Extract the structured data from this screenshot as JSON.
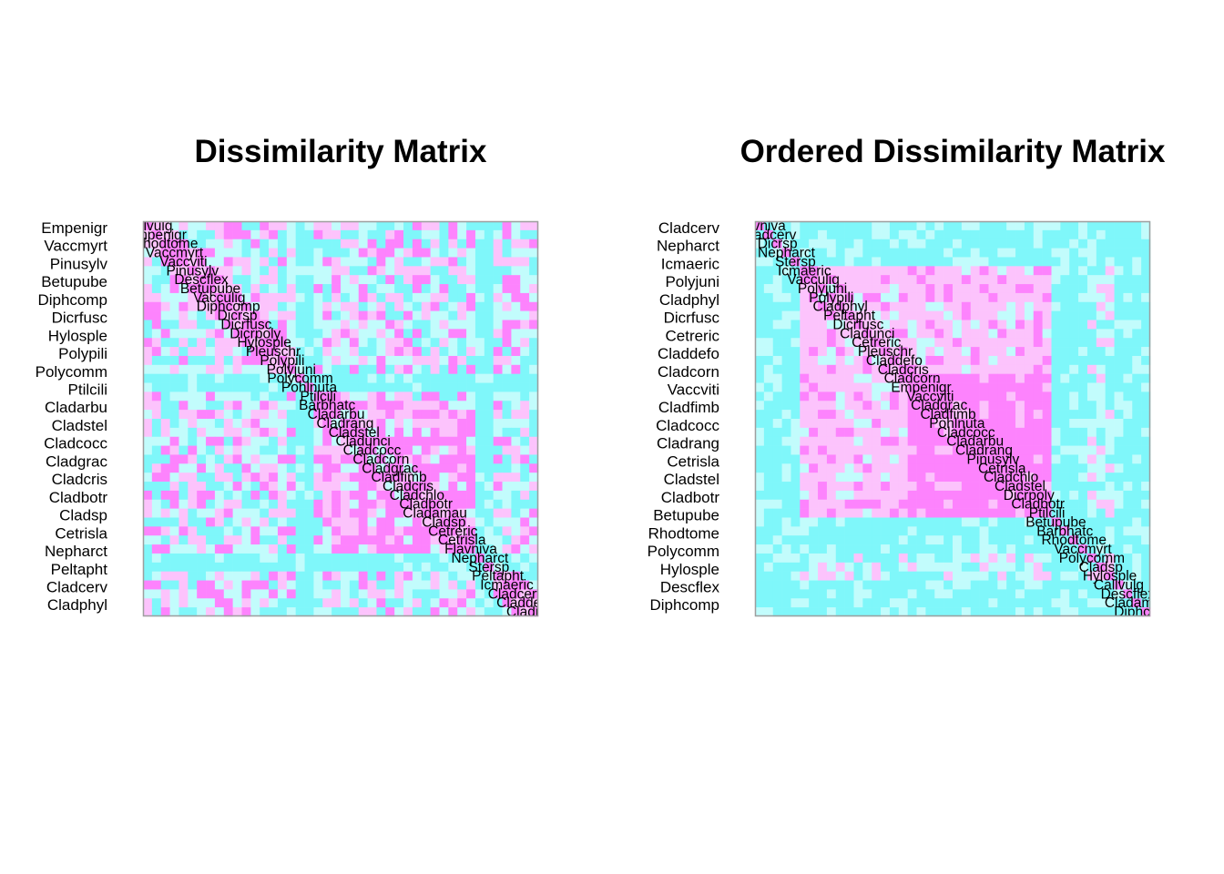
{
  "colors": {
    "low": "#7ff7fa",
    "midlow": "#c2fcfc",
    "midhigh": "#fcc3fc",
    "high": "#fd83fd",
    "frame": "#9e9e9e"
  },
  "chart_data": [
    {
      "type": "heatmap",
      "title": "Dissimilarity Matrix",
      "n": 44,
      "ordered": false,
      "row_tick_labels": [
        "Empenigr",
        "Vaccmyrt",
        "Pinusylv",
        "Betupube",
        "Diphcomp",
        "Dicrfusc",
        "Hylosple",
        "Polypili",
        "Polycomm",
        "Ptilcili",
        "Cladarbu",
        "Cladstel",
        "Cladcocc",
        "Cladgrac",
        "Cladcris",
        "Cladbotr",
        "Cladsp",
        "Cetrisla",
        "Nepharct",
        "Peltapht",
        "Cladcerv",
        "Cladphyl"
      ],
      "diagonal_labels": [
        "Callvulg",
        "Empenigr",
        "Rhodtome",
        "Vaccmyrt",
        "Vaccviti",
        "Pinusylv",
        "Descflex",
        "Betupube",
        "Vacculig",
        "Diphcomp",
        "Dicrsp",
        "Dicrfusc",
        "Dicrpoly",
        "Hylosple",
        "Pleuschr",
        "Polypili",
        "Polyjuni",
        "Polycomm",
        "Pohlnuta",
        "Ptilcili",
        "Barbhatc",
        "Cladarbu",
        "Cladrang",
        "Cladstel",
        "Cladunci",
        "Cladcocc",
        "Cladcorn",
        "Cladgrac",
        "Cladfimb",
        "Cladcris",
        "Cladchlo",
        "Cladbotr",
        "Cladamau",
        "Cladsp",
        "Cetreric",
        "Cetrisla",
        "Flavniva",
        "Nepharct",
        "Stersp",
        "Peltapht",
        "Icmaeric",
        "Cladcerv",
        "Claddefo",
        "Cladphyl"
      ],
      "color_scale": [
        "low",
        "midlow",
        "midhigh",
        "high"
      ]
    },
    {
      "type": "heatmap",
      "title": "Ordered Dissimilarity Matrix",
      "n": 44,
      "ordered": true,
      "row_tick_labels": [
        "Cladcerv",
        "Nepharct",
        "Icmaeric",
        "Polyjuni",
        "Cladphyl",
        "Dicrfusc",
        "Cetreric",
        "Claddefo",
        "Cladcorn",
        "Vaccviti",
        "Cladfimb",
        "Cladcocc",
        "Cladrang",
        "Cetrisla",
        "Cladstel",
        "Cladbotr",
        "Betupube",
        "Rhodtome",
        "Polycomm",
        "Hylosple",
        "Descflex",
        "Diphcomp"
      ],
      "diagonal_labels": [
        "Flavniva",
        "Cladcerv",
        "Dicrsp",
        "Nepharct",
        "Stersp",
        "Icmaeric",
        "Vacculig",
        "Polyjuni",
        "Polypili",
        "Cladphyl",
        "Peltapht",
        "Dicrfusc",
        "Cladunci",
        "Cetreric",
        "Pleuschr",
        "Claddefo",
        "Cladcris",
        "Cladcorn",
        "Empenigr",
        "Vaccviti",
        "Cladgrac",
        "Cladfimb",
        "Pohlnuta",
        "Cladcocc",
        "Cladarbu",
        "Cladrang",
        "Pinusylv",
        "Cetrisla",
        "Cladchlo",
        "Cladstel",
        "Dicrpoly",
        "Cladbotr",
        "Ptilcili",
        "Betupube",
        "Barbhatc",
        "Rhodtome",
        "Vaccmyrt",
        "Polycomm",
        "Cladsp",
        "Hylosple",
        "Callvulg",
        "Descflex",
        "Cladamau",
        "Diphcomp"
      ],
      "color_scale": [
        "low",
        "midlow",
        "midhigh",
        "high"
      ]
    }
  ]
}
